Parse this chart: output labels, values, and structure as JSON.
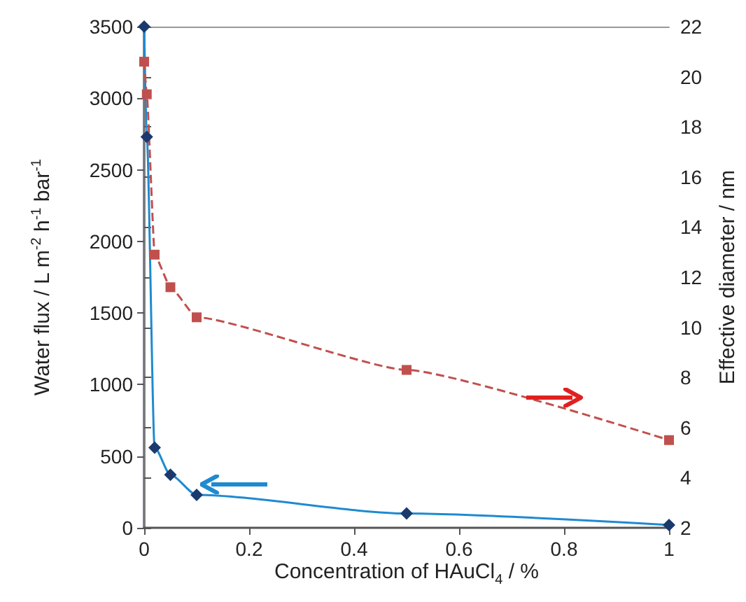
{
  "chart_data": {
    "type": "line",
    "xlabel": "Concentration of HAuCl$_{4}$ / %",
    "ylabel": "Water flux / L m$^{-2}$ h$^{-1}$ bar$^{-1}$",
    "y2label": "Effective diameter / nm",
    "xlim": [
      0,
      1
    ],
    "xticks": [
      0,
      0.2,
      0.4,
      0.6,
      0.8,
      1
    ],
    "ylim": [
      0,
      3500
    ],
    "yticks": [
      0,
      500,
      1000,
      1500,
      2000,
      2500,
      3000,
      3500
    ],
    "y2lim": [
      2,
      22
    ],
    "y2ticks": [
      2,
      4,
      6,
      8,
      10,
      12,
      14,
      16,
      18,
      20,
      22
    ],
    "grid": false,
    "series": [
      {
        "color": "#1f8ad0",
        "marker": "diamond",
        "line_style": "solid",
        "x": [
          0,
          0.005,
          0.02,
          0.05,
          0.1,
          0.5,
          1
        ],
        "values": [
          3500,
          2730,
          560,
          370,
          230,
          100,
          20
        ]
      },
      {
        "color": "#c0504d",
        "marker": "square",
        "line_style": "dashed",
        "axis": "y2",
        "x": [
          0,
          0.005,
          0.02,
          0.05,
          0.1,
          0.5,
          1
        ],
        "values": [
          20.6,
          19.3,
          12.9,
          11.6,
          10.4,
          8.3,
          5.5
        ]
      }
    ]
  }
}
